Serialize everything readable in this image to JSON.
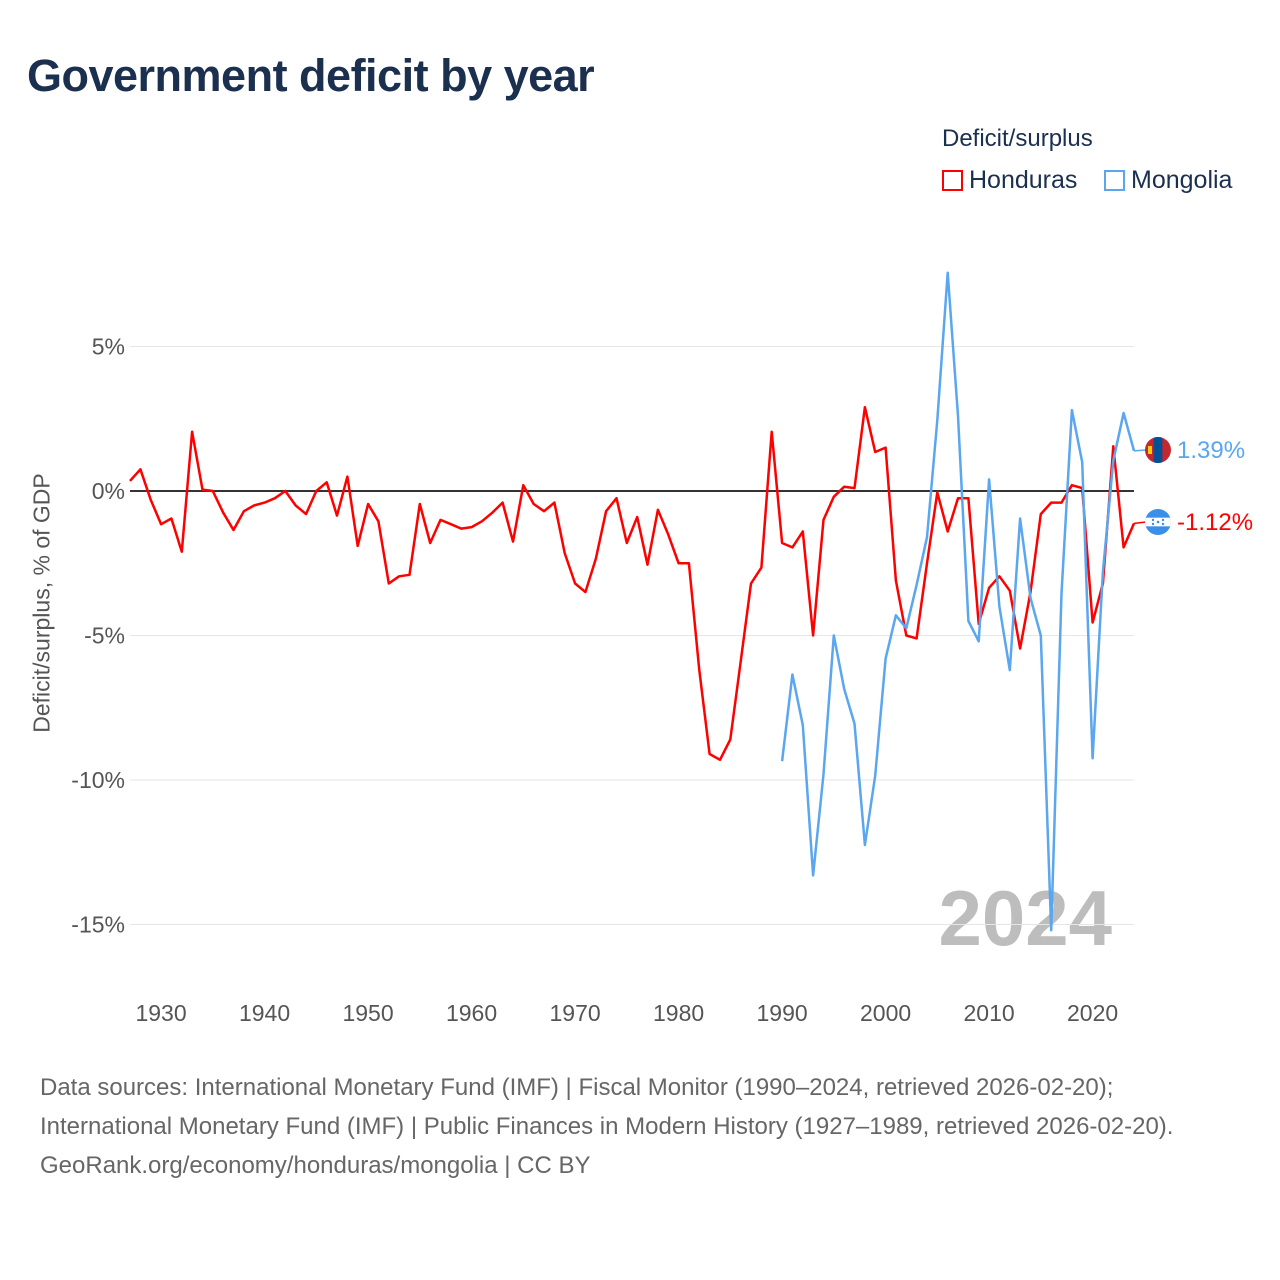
{
  "title": "Government deficit by year",
  "legend": {
    "title": "Deficit/surplus",
    "items": [
      {
        "name": "Honduras",
        "color": "#ff0000"
      },
      {
        "name": "Mongolia",
        "color": "#5aa6ef"
      }
    ]
  },
  "footer": {
    "sources": "Data sources: International Monetary Fund (IMF) | Fiscal Monitor (1990–2024, retrieved 2026-02-20); International Monetary Fund (IMF) | Public Finances in Modern History (1927–1989, retrieved 2026-02-20).",
    "credit": "GeoRank.org/economy/honduras/mongolia | CC BY"
  },
  "chart_data": {
    "type": "line",
    "title": "Government deficit by year",
    "xlabel": "",
    "ylabel": "Deficit/surplus, % of GDP",
    "xlim": [
      1927,
      2024
    ],
    "ylim": [
      -17,
      8
    ],
    "x_ticks": [
      1930,
      1940,
      1950,
      1960,
      1970,
      1980,
      1990,
      2000,
      2010,
      2020
    ],
    "y_ticks": [
      {
        "v": 5,
        "label": "5%"
      },
      {
        "v": 0,
        "label": "0%"
      },
      {
        "v": -5,
        "label": "-5%"
      },
      {
        "v": -10,
        "label": "-10%"
      },
      {
        "v": -15,
        "label": "-15%"
      }
    ],
    "year_watermark": "2024",
    "series": [
      {
        "name": "Honduras",
        "color": "#ff0000",
        "start_year": 1927,
        "end_label": "-1.12%",
        "values": [
          0.35,
          0.75,
          -0.3,
          -1.15,
          -0.95,
          -2.1,
          2.05,
          0.05,
          0,
          -0.75,
          -1.35,
          -0.7,
          -0.5,
          -0.4,
          -0.25,
          0,
          -0.5,
          -0.8,
          0,
          0.3,
          -0.85,
          0.5,
          -1.9,
          -0.45,
          -1.05,
          -3.2,
          -2.95,
          -2.9,
          -0.45,
          -1.8,
          -1.0,
          -1.15,
          -1.3,
          -1.25,
          -1.05,
          -0.75,
          -0.4,
          -1.75,
          0.2,
          -0.45,
          -0.7,
          -0.4,
          -2.15,
          -3.2,
          -3.5,
          -2.35,
          -0.7,
          -0.25,
          -1.8,
          -0.9,
          -2.55,
          -0.65,
          -1.5,
          -2.5,
          -2.5,
          -6.2,
          -9.1,
          -9.3,
          -8.6,
          -5.9,
          -3.2,
          -2.65,
          2.05,
          -1.8,
          -1.95,
          -1.4,
          -5.0,
          -1.0,
          -0.2,
          0.15,
          0.1,
          2.9,
          1.35,
          1.5,
          -3.1,
          -5.0,
          -5.1,
          -2.5,
          -0.05,
          -1.4,
          -0.25,
          -0.25,
          -4.6,
          -3.35,
          -2.95,
          -3.45,
          -5.45,
          -3.5,
          -0.8,
          -0.4,
          -0.4,
          0.2,
          0.1,
          -4.55,
          -3.2,
          1.55,
          -1.95,
          -1.12
        ]
      },
      {
        "name": "Mongolia",
        "color": "#5aa6ef",
        "start_year": 1990,
        "end_label": "1.39%",
        "values": [
          -9.35,
          -6.35,
          -8.1,
          -13.3,
          -9.8,
          -5.0,
          -6.85,
          -8.05,
          -12.25,
          -9.85,
          -5.8,
          -4.3,
          -4.75,
          -3.25,
          -1.6,
          2.45,
          7.55,
          2.6,
          -4.5,
          -5.2,
          0.4,
          -4.0,
          -6.2,
          -0.95,
          -3.7,
          -5.0,
          -15.2,
          -3.55,
          2.8,
          1.0,
          -9.25,
          -2.8,
          1.05,
          2.7,
          1.39
        ]
      }
    ]
  }
}
